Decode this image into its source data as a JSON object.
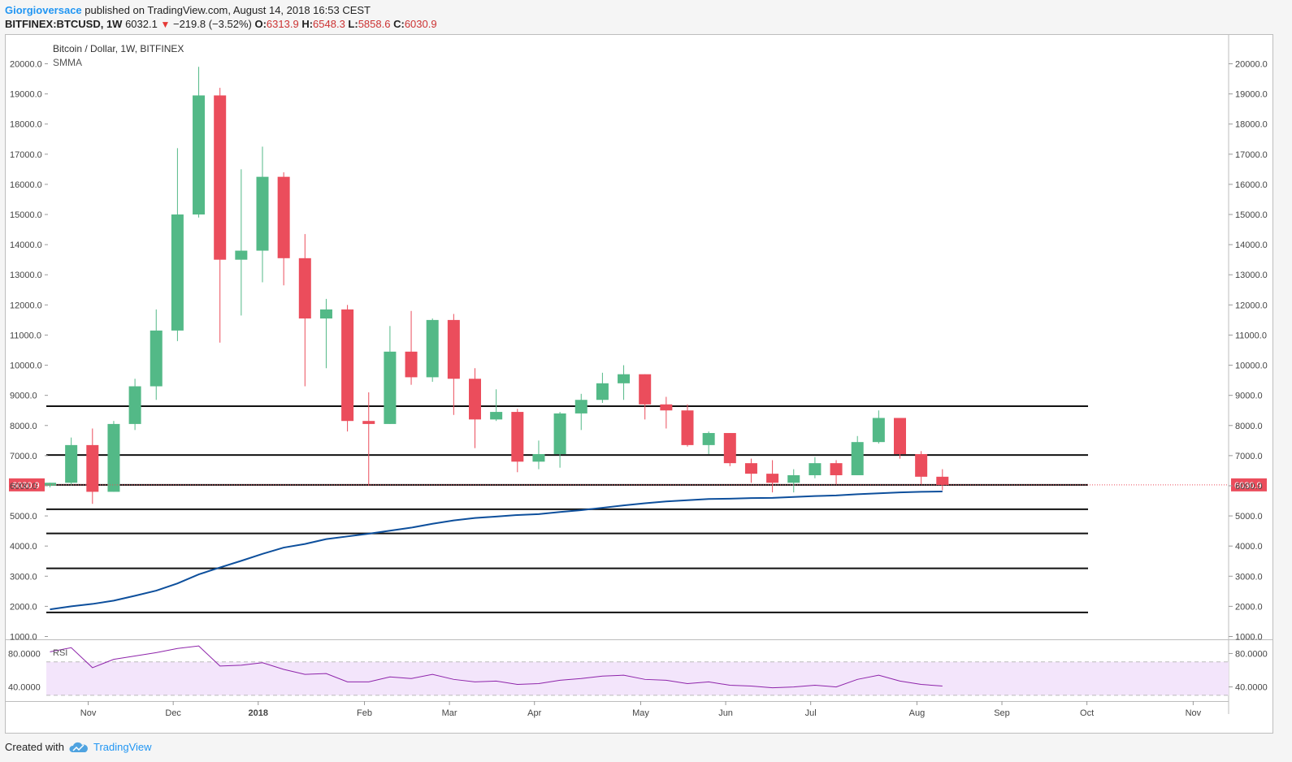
{
  "header": {
    "author": "Giorgioversace",
    "published_text": "published on TradingView.com, August 14, 2018 16:53 CEST"
  },
  "ohlc": {
    "symbol": "BITFINEX:BTCUSD, 1W",
    "last": "6032.1",
    "change": "−219.8 (−3.52%)",
    "o_label": "O:",
    "o": "6313.9",
    "h_label": "H:",
    "h": "6548.3",
    "l_label": "L:",
    "l": "5858.6",
    "c_label": "C:",
    "c": "6030.9"
  },
  "footer": {
    "created_with": "Created with",
    "brand": "TradingView"
  },
  "chart_data": {
    "type": "candlestick",
    "title": "Bitcoin / Dollar, 1W, BITFINEX",
    "indicator": "SMMA",
    "rsi_label": "RSI",
    "price_label": "6030.9",
    "y_ticks": [
      "20000.0",
      "19000.0",
      "18000.0",
      "17000.0",
      "16000.0",
      "15000.0",
      "14000.0",
      "13000.0",
      "12000.0",
      "11000.0",
      "10000.0",
      "9000.0",
      "8000.0",
      "7000.0",
      "6000.0",
      "5000.0",
      "4000.0",
      "3000.0",
      "2000.0",
      "1000.0"
    ],
    "ylim": [
      1000,
      20000
    ],
    "rsi_ticks": [
      "80.0000",
      "40.0000"
    ],
    "rsi_ylim": [
      25,
      95
    ],
    "rsi_band": [
      70,
      30
    ],
    "x_labels": [
      {
        "label": "Nov",
        "week": 1.8
      },
      {
        "label": "Dec",
        "week": 5.8
      },
      {
        "label": "2018",
        "week": 9.8
      },
      {
        "label": "Feb",
        "week": 14.8
      },
      {
        "label": "Mar",
        "week": 18.8
      },
      {
        "label": "Apr",
        "week": 22.8
      },
      {
        "label": "May",
        "week": 27.8
      },
      {
        "label": "Jun",
        "week": 31.8
      },
      {
        "label": "Jul",
        "week": 35.8
      },
      {
        "label": "Aug",
        "week": 40.8
      },
      {
        "label": "Sep",
        "week": 44.8
      },
      {
        "label": "Oct",
        "week": 48.8
      },
      {
        "label": "Nov",
        "week": 53.8
      }
    ],
    "candles": [
      {
        "o": 6000,
        "h": 6100,
        "l": 5950,
        "c": 6100
      },
      {
        "o": 6100,
        "h": 7600,
        "l": 6000,
        "c": 7350
      },
      {
        "o": 7350,
        "h": 7900,
        "l": 5400,
        "c": 5800
      },
      {
        "o": 5800,
        "h": 8150,
        "l": 5800,
        "c": 8050
      },
      {
        "o": 8050,
        "h": 9550,
        "l": 7850,
        "c": 9300
      },
      {
        "o": 9300,
        "h": 11850,
        "l": 8850,
        "c": 11150
      },
      {
        "o": 11150,
        "h": 17200,
        "l": 10800,
        "c": 15000
      },
      {
        "o": 15000,
        "h": 19900,
        "l": 14900,
        "c": 18950
      },
      {
        "o": 18950,
        "h": 19200,
        "l": 10750,
        "c": 13500
      },
      {
        "o": 13500,
        "h": 16500,
        "l": 11650,
        "c": 13800
      },
      {
        "o": 13800,
        "h": 17250,
        "l": 12750,
        "c": 16250
      },
      {
        "o": 16250,
        "h": 16400,
        "l": 12650,
        "c": 13550
      },
      {
        "o": 13550,
        "h": 14350,
        "l": 9300,
        "c": 11550
      },
      {
        "o": 11550,
        "h": 12200,
        "l": 9900,
        "c": 11850
      },
      {
        "o": 11850,
        "h": 12000,
        "l": 7800,
        "c": 8150
      },
      {
        "o": 8150,
        "h": 9100,
        "l": 6000,
        "c": 8050
      },
      {
        "o": 8050,
        "h": 11300,
        "l": 8050,
        "c": 10450
      },
      {
        "o": 10450,
        "h": 11800,
        "l": 9350,
        "c": 9600
      },
      {
        "o": 9600,
        "h": 11550,
        "l": 9450,
        "c": 11500
      },
      {
        "o": 11500,
        "h": 11700,
        "l": 8350,
        "c": 9550
      },
      {
        "o": 9550,
        "h": 9900,
        "l": 7250,
        "c": 8200
      },
      {
        "o": 8200,
        "h": 9200,
        "l": 8150,
        "c": 8450
      },
      {
        "o": 8450,
        "h": 8550,
        "l": 6450,
        "c": 6800
      },
      {
        "o": 6800,
        "h": 7500,
        "l": 6550,
        "c": 7050
      },
      {
        "o": 7050,
        "h": 8450,
        "l": 6600,
        "c": 8400
      },
      {
        "o": 8400,
        "h": 9050,
        "l": 7850,
        "c": 8850
      },
      {
        "o": 8850,
        "h": 9750,
        "l": 8750,
        "c": 9400
      },
      {
        "o": 9400,
        "h": 10000,
        "l": 8850,
        "c": 9700
      },
      {
        "o": 9700,
        "h": 9700,
        "l": 8200,
        "c": 8700
      },
      {
        "o": 8700,
        "h": 8950,
        "l": 7900,
        "c": 8500
      },
      {
        "o": 8500,
        "h": 8700,
        "l": 7300,
        "c": 7350
      },
      {
        "o": 7350,
        "h": 7800,
        "l": 7050,
        "c": 7750
      },
      {
        "o": 7750,
        "h": 7750,
        "l": 6650,
        "c": 6750
      },
      {
        "o": 6750,
        "h": 6900,
        "l": 6100,
        "c": 6400
      },
      {
        "o": 6400,
        "h": 6850,
        "l": 5780,
        "c": 6100
      },
      {
        "o": 6100,
        "h": 6550,
        "l": 5780,
        "c": 6350
      },
      {
        "o": 6350,
        "h": 6950,
        "l": 6250,
        "c": 6750
      },
      {
        "o": 6750,
        "h": 6850,
        "l": 6050,
        "c": 6350
      },
      {
        "o": 6350,
        "h": 7650,
        "l": 6350,
        "c": 7450
      },
      {
        "o": 7450,
        "h": 8500,
        "l": 7400,
        "c": 8250
      },
      {
        "o": 8250,
        "h": 8250,
        "l": 6900,
        "c": 7050
      },
      {
        "o": 7050,
        "h": 7150,
        "l": 6050,
        "c": 6300
      },
      {
        "o": 6300,
        "h": 6550,
        "l": 5850,
        "c": 6030
      }
    ],
    "smma": [
      1900,
      2000,
      2080,
      2190,
      2350,
      2520,
      2760,
      3060,
      3290,
      3510,
      3740,
      3950,
      4070,
      4230,
      4320,
      4410,
      4510,
      4610,
      4740,
      4850,
      4930,
      4980,
      5030,
      5060,
      5130,
      5190,
      5270,
      5350,
      5420,
      5480,
      5520,
      5560,
      5570,
      5590,
      5600,
      5630,
      5660,
      5680,
      5720,
      5750,
      5780,
      5800,
      5810
    ],
    "horizontal_levels": [
      8640,
      7020,
      6030,
      5220,
      4420,
      3260,
      1800
    ],
    "rsi": [
      82,
      87,
      63,
      73,
      77,
      81,
      86,
      89,
      65,
      66,
      69,
      61,
      55,
      56,
      46,
      46,
      52,
      50,
      55,
      49,
      46,
      47,
      43,
      44,
      48,
      50,
      53,
      54,
      49,
      48,
      44,
      46,
      42,
      41,
      39,
      40,
      42,
      40,
      49,
      54,
      47,
      43,
      41
    ]
  }
}
